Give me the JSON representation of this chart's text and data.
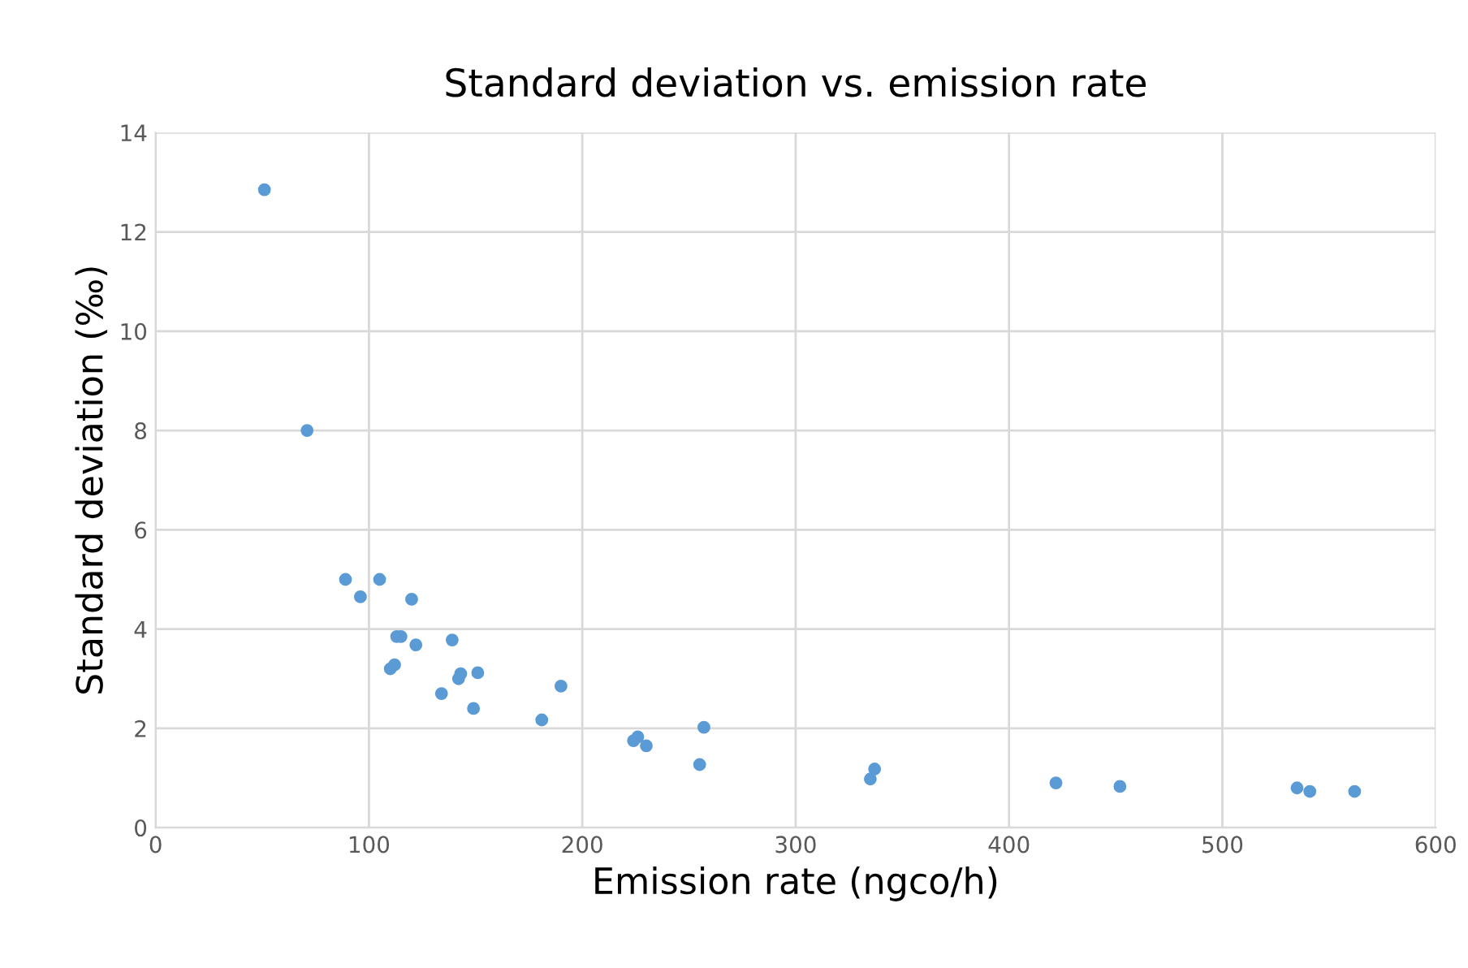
{
  "chart_data": {
    "type": "scatter",
    "title": "Standard deviation vs. emission rate",
    "xlabel": "Emission rate (ngco/h)",
    "ylabel": "Standard deviation (‰)",
    "series": [
      {
        "color": "#5b9bd5",
        "x": [
          51,
          71,
          89,
          96,
          105,
          120,
          113,
          115,
          122,
          139,
          110,
          112,
          142,
          143,
          151,
          134,
          149,
          190,
          181,
          224,
          226,
          230,
          257,
          255,
          337,
          335,
          422,
          452,
          535,
          541,
          562
        ],
        "values": [
          12.85,
          8.0,
          5.0,
          4.65,
          5.0,
          4.6,
          3.85,
          3.85,
          3.68,
          3.78,
          3.2,
          3.28,
          3.0,
          3.1,
          3.12,
          2.7,
          2.4,
          2.85,
          2.17,
          1.75,
          1.83,
          1.65,
          2.02,
          1.27,
          1.18,
          0.98,
          0.9,
          0.83,
          0.8,
          0.73,
          0.73
        ]
      }
    ],
    "xlim": [
      0,
      600
    ],
    "xticks": [
      0,
      100,
      200,
      300,
      400,
      500,
      600
    ],
    "ylim": [
      0,
      14
    ],
    "yticks": [
      0,
      2,
      4,
      6,
      8,
      10,
      12,
      14
    ],
    "grid": true,
    "marker": "circle"
  }
}
